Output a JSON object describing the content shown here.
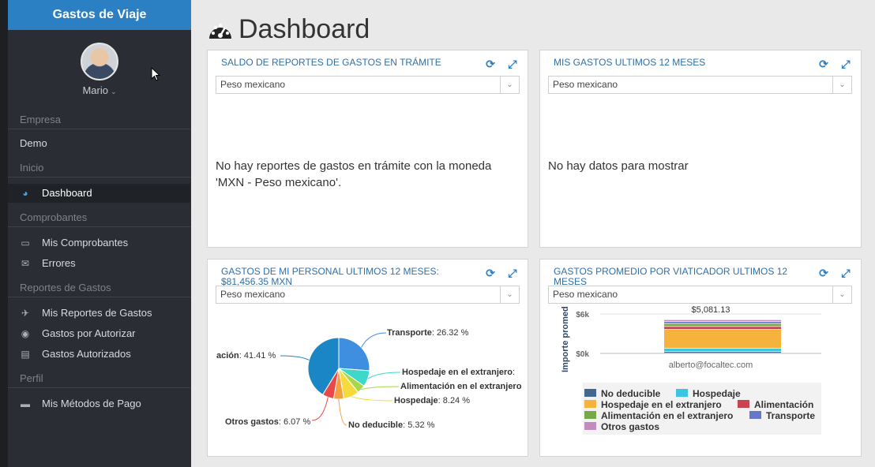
{
  "app": {
    "title": "Gastos de Viaje",
    "user_name": "Mario"
  },
  "sidebar": {
    "section_empresa": "Empresa",
    "empresa_demo": "Demo",
    "section_inicio": "Inicio",
    "dashboard": "Dashboard",
    "section_comprobantes": "Comprobantes",
    "mis_comprobantes": "Mis Comprobantes",
    "errores": "Errores",
    "section_reportes": "Reportes de Gastos",
    "mis_reportes": "Mis Reportes de Gastos",
    "gastos_por_autorizar": "Gastos por Autorizar",
    "gastos_autorizados": "Gastos Autorizados",
    "section_perfil": "Perfil",
    "metodos_pago": "Mis Métodos de Pago"
  },
  "page": {
    "title": "Dashboard"
  },
  "panels": {
    "saldo": {
      "title": "SALDO DE REPORTES DE GASTOS EN TRÁMITE",
      "currency": "Peso mexicano",
      "message": "No hay reportes de gastos en trámite con la moneda 'MXN - Peso mexicano'."
    },
    "mis_gastos": {
      "title": "MIS GASTOS ULTIMOS 12 MESES",
      "currency": "Peso mexicano",
      "message": "No hay datos para mostrar"
    },
    "personal": {
      "title": "GASTOS DE MI PERSONAL ULTIMOS 12 MESES: $81,456.35 MXN",
      "currency": "Peso mexicano"
    },
    "promedio": {
      "title": "GASTOS PROMEDIO POR VIATICADOR ULTIMOS 12 MESES",
      "currency": "Peso mexicano"
    }
  },
  "chart_data": [
    {
      "type": "pie",
      "slices": [
        {
          "name": "Transporte",
          "value": 26.32,
          "label": "26.32 %",
          "color": "#3f8fe0"
        },
        {
          "name": "Hospedaje en el extranjero",
          "value": 8.5,
          "label": ":",
          "color": "#3ed8c8"
        },
        {
          "name": "Alimentación en el extranjero",
          "value": 4.5,
          "label": "",
          "color": "#a6d84a"
        },
        {
          "name": "Hospedaje",
          "value": 8.24,
          "label": "8.24 %",
          "color": "#f5da3c"
        },
        {
          "name": "No deducible",
          "value": 5.32,
          "label": "5.32 %",
          "color": "#f5a040"
        },
        {
          "name": "Otros gastos",
          "value": 6.07,
          "label": "6.07 %",
          "color": "#e84848"
        },
        {
          "name": "ación",
          "value": 41.41,
          "label": "41.41 %",
          "color": "#1a86c6"
        }
      ]
    },
    {
      "type": "bar",
      "ylabel": "Importe promed",
      "yticks": [
        "$6k",
        "$0k"
      ],
      "categories": [
        "alberto@focaltec.com"
      ],
      "total_label": "$5,081.13",
      "total": 5081.13,
      "ylim": [
        0,
        6000
      ],
      "series": [
        {
          "name": "No deducible",
          "values": [
            250
          ],
          "color": "#44678f"
        },
        {
          "name": "Hospedaje",
          "values": [
            500
          ],
          "color": "#3bc5e3"
        },
        {
          "name": "Hospedaje en el extranjero",
          "values": [
            2850
          ],
          "color": "#f5b33d"
        },
        {
          "name": "Alimentación",
          "values": [
            450
          ],
          "color": "#c94452"
        },
        {
          "name": "Alimentación en el extranjero",
          "values": [
            450
          ],
          "color": "#78a849"
        },
        {
          "name": "Transporte",
          "values": [
            320
          ],
          "color": "#6878c9"
        },
        {
          "name": "Otros gastos",
          "values": [
            261.13
          ],
          "color": "#c28bbd"
        }
      ]
    }
  ]
}
